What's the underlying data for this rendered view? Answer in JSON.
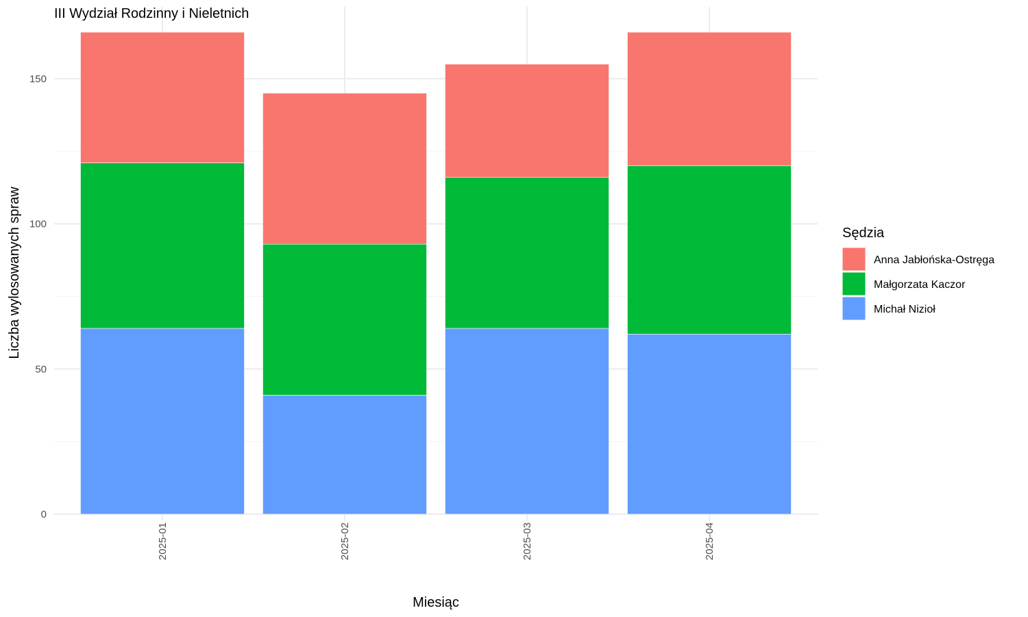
{
  "chart_data": {
    "type": "bar",
    "stacked": true,
    "title": "III Wydział Rodzinny i Nieletnich",
    "xlabel": "Miesiąc",
    "ylabel": "Liczba wylosowanych spraw",
    "categories": [
      "2025-01",
      "2025-02",
      "2025-03",
      "2025-04"
    ],
    "ylim": [
      0,
      166
    ],
    "yticks": [
      0,
      50,
      100,
      150
    ],
    "grid": true,
    "legend": {
      "title": "Sędzia",
      "position": "right"
    },
    "series": [
      {
        "name": "Anna Jabłońska-Ostręga",
        "color": "#F8766D",
        "values": [
          45,
          52,
          39,
          46
        ]
      },
      {
        "name": "Małgorzata Kaczor",
        "color": "#00BA38",
        "values": [
          57,
          52,
          52,
          58
        ]
      },
      {
        "name": "Michał Nizioł",
        "color": "#619CFF",
        "values": [
          64,
          41,
          64,
          62
        ]
      }
    ],
    "stack_order_bottom_to_top": [
      "Michał Nizioł",
      "Małgorzata Kaczor",
      "Anna Jabłońska-Ostręga"
    ]
  }
}
